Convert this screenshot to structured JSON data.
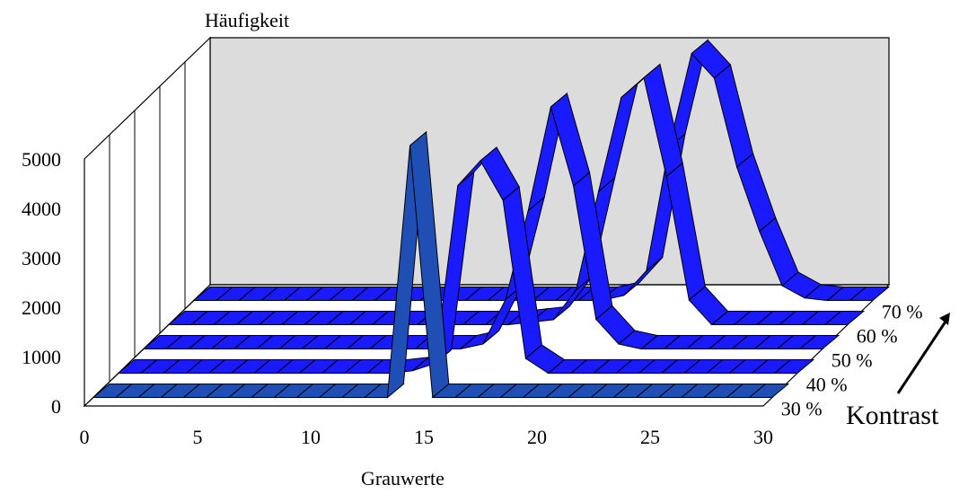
{
  "chart_data": {
    "type": "area",
    "subtype": "3d-ribbon",
    "ylabel": "Häufigkeit",
    "xlabel": "Grauwerte",
    "zlabel": "Kontrast",
    "x_ticks": [
      "0",
      "5",
      "10",
      "15",
      "20",
      "25",
      "30"
    ],
    "y_ticks": [
      "0",
      "1000",
      "2000",
      "3000",
      "4000",
      "5000"
    ],
    "z_ticks": [
      "30 %",
      "40 %",
      "50 %",
      "60 %",
      "70 %"
    ],
    "xlim": [
      0,
      30
    ],
    "ylim": [
      0,
      5000
    ],
    "x": [
      0,
      1,
      2,
      3,
      4,
      5,
      6,
      7,
      8,
      9,
      10,
      11,
      12,
      13,
      14,
      15,
      16,
      17,
      18,
      19,
      20,
      21,
      22,
      23,
      24,
      25,
      26,
      27,
      28,
      29,
      30
    ],
    "series": [
      {
        "name": "30 %",
        "color": "#1f4fb4",
        "values": [
          0,
          0,
          0,
          0,
          0,
          0,
          0,
          0,
          0,
          0,
          0,
          0,
          0,
          0,
          5100,
          0,
          0,
          0,
          0,
          0,
          0,
          0,
          0,
          0,
          0,
          0,
          0,
          0,
          0,
          0,
          0
        ]
      },
      {
        "name": "40 %",
        "color": "#1a1aff",
        "values": [
          0,
          0,
          0,
          0,
          0,
          0,
          0,
          0,
          0,
          0,
          0,
          0,
          0,
          50,
          200,
          3800,
          4300,
          3500,
          300,
          0,
          0,
          0,
          0,
          0,
          0,
          0,
          0,
          0,
          0,
          0,
          0
        ]
      },
      {
        "name": "50 %",
        "color": "#1a1aff",
        "values": [
          0,
          0,
          0,
          0,
          0,
          0,
          0,
          0,
          0,
          0,
          0,
          0,
          0,
          0,
          0,
          100,
          1000,
          2800,
          4900,
          3300,
          600,
          100,
          0,
          0,
          0,
          0,
          0,
          0,
          0,
          0,
          0
        ]
      },
      {
        "name": "60 %",
        "color": "#1a1aff",
        "values": [
          0,
          0,
          0,
          0,
          0,
          0,
          0,
          0,
          0,
          0,
          0,
          0,
          0,
          0,
          0,
          0,
          50,
          100,
          700,
          2700,
          4600,
          5000,
          3000,
          500,
          0,
          0,
          0,
          0,
          0,
          0,
          0
        ]
      },
      {
        "name": "70 %",
        "color": "#1a1aff",
        "values": [
          0,
          0,
          0,
          0,
          0,
          0,
          0,
          0,
          0,
          0,
          0,
          0,
          0,
          0,
          0,
          0,
          0,
          0,
          0,
          100,
          600,
          3100,
          5000,
          4500,
          2700,
          1400,
          300,
          50,
          0,
          0,
          0
        ]
      }
    ],
    "grid": true,
    "arrow_label": "Kontrast"
  }
}
